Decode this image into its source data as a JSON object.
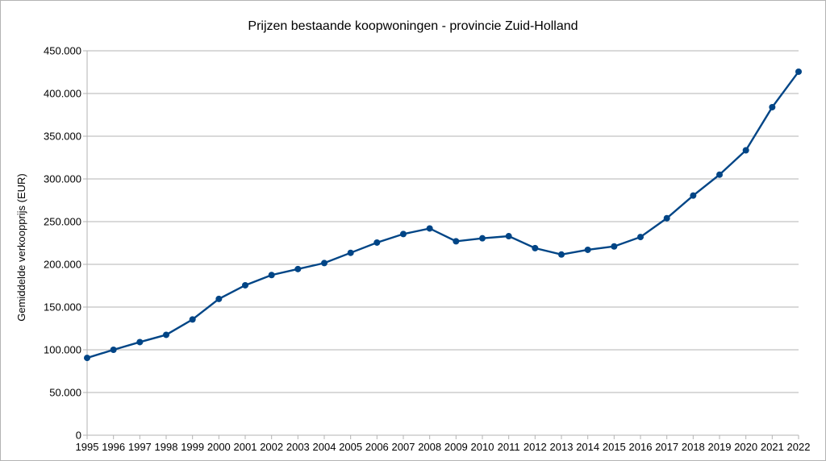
{
  "colors": {
    "series": "#004586",
    "grid": "#b3b3b3"
  },
  "chart_data": {
    "type": "line",
    "title": "Prijzen bestaande koopwoningen - provincie Zuid-Holland",
    "xlabel": "",
    "ylabel": "Gemiddelde verkoopprijs (EUR)",
    "ylim": [
      0,
      450000
    ],
    "yticks": [
      0,
      50000,
      100000,
      150000,
      200000,
      250000,
      300000,
      350000,
      400000,
      450000
    ],
    "ytick_labels": [
      "0",
      "50.000",
      "100.000",
      "150.000",
      "200.000",
      "250.000",
      "300.000",
      "350.000",
      "400.000",
      "450.000"
    ],
    "grid": true,
    "legend": "none",
    "x": [
      "1995",
      "1996",
      "1997",
      "1998",
      "1999",
      "2000",
      "2001",
      "2002",
      "2003",
      "2004",
      "2005",
      "2006",
      "2007",
      "2008",
      "2009",
      "2010",
      "2011",
      "2012",
      "2013",
      "2014",
      "2015",
      "2016",
      "2017",
      "2018",
      "2019",
      "2020",
      "2021",
      "2022"
    ],
    "series": [
      {
        "values": [
          90500,
          100000,
          109000,
          117500,
          135500,
          159500,
          175500,
          187500,
          194500,
          201500,
          213500,
          225500,
          235500,
          242000,
          227000,
          230500,
          233000,
          219000,
          211500,
          217000,
          221000,
          232000,
          254000,
          280500,
          305000,
          333500,
          384000,
          425500
        ]
      }
    ]
  }
}
